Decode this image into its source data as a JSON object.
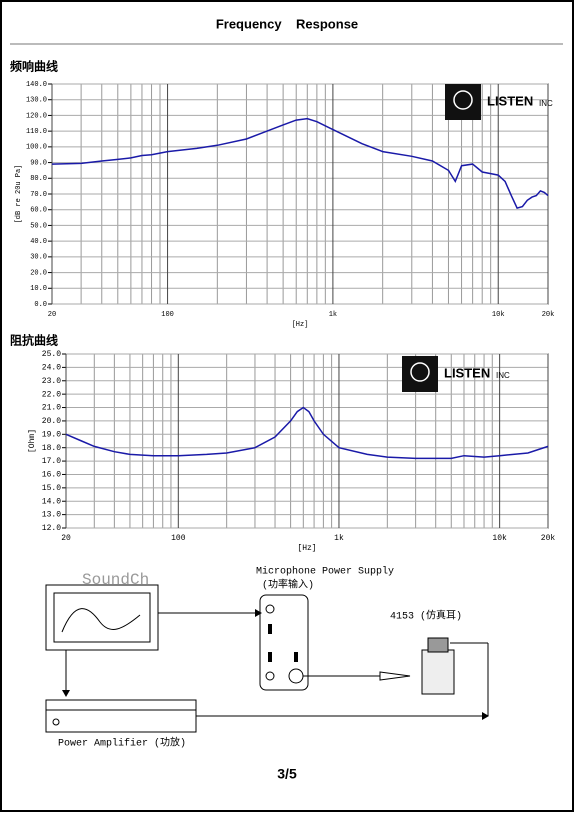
{
  "header": {
    "title": "Frequency    Response"
  },
  "chart_data": [
    {
      "type": "line",
      "title": "频响曲线",
      "x_label": "[Hz]",
      "y_label": "[dB re 20u Pa]",
      "logo_text": "LISTEN",
      "logo_suffix": "INC",
      "log_x": true,
      "grid": true,
      "color": "#1a1aa8",
      "xlim": [
        20,
        20000
      ],
      "xticks": [
        20,
        100,
        {
          "value": 1000,
          "label": "1k"
        },
        {
          "value": 10000,
          "label": "10k"
        },
        {
          "value": 20000,
          "label": "20k"
        }
      ],
      "ylim": [
        0,
        140
      ],
      "yticks": [
        {
          "value": 0,
          "label": "0.0"
        },
        {
          "value": 10,
          "label": "10.0"
        },
        {
          "value": 20,
          "label": "20.0"
        },
        {
          "value": 30,
          "label": "30.0"
        },
        {
          "value": 40,
          "label": "40.0"
        },
        {
          "value": 50,
          "label": "50.0"
        },
        {
          "value": 60,
          "label": "60.0"
        },
        {
          "value": 70,
          "label": "70.0"
        },
        {
          "value": 80,
          "label": "80.0"
        },
        {
          "value": 90,
          "label": "90.0"
        },
        {
          "value": 100,
          "label": "100.0"
        },
        {
          "value": 110,
          "label": "110.0"
        },
        {
          "value": 120,
          "label": "120.0"
        },
        {
          "value": 130,
          "label": "130.0"
        },
        {
          "value": 140,
          "label": "140.0"
        }
      ],
      "x": [
        20,
        30,
        40,
        50,
        60,
        70,
        80,
        100,
        150,
        200,
        300,
        400,
        500,
        600,
        700,
        800,
        1000,
        1500,
        2000,
        3000,
        4000,
        5000,
        5500,
        6000,
        7000,
        8000,
        9000,
        10000,
        11000,
        12000,
        13000,
        14000,
        15000,
        16000,
        17000,
        18000,
        19000,
        20000
      ],
      "values": [
        89,
        89.5,
        91,
        92,
        93,
        94.5,
        95,
        97,
        99,
        101,
        105,
        110,
        114,
        117,
        118,
        116,
        111,
        102,
        97,
        94,
        91,
        85,
        78,
        88,
        89,
        84,
        83,
        82,
        78,
        69,
        61,
        62,
        66,
        68,
        69,
        72,
        71,
        69
      ]
    },
    {
      "type": "line",
      "title": "阻抗曲线",
      "x_label": "[Hz]",
      "y_label": "[Ohm]",
      "logo_text": "LISTEN",
      "logo_suffix": "INC",
      "log_x": true,
      "grid": true,
      "color": "#1a1aa8",
      "xlim": [
        20,
        20000
      ],
      "xticks": [
        20,
        100,
        {
          "value": 1000,
          "label": "1k"
        },
        {
          "value": 10000,
          "label": "10k"
        },
        {
          "value": 20000,
          "label": "20k"
        }
      ],
      "ylim": [
        12,
        25
      ],
      "yticks": [
        {
          "value": 12,
          "label": "12.0"
        },
        {
          "value": 13,
          "label": "13.0"
        },
        {
          "value": 14,
          "label": "14.0"
        },
        {
          "value": 15,
          "label": "15.0"
        },
        {
          "value": 16,
          "label": "16.0"
        },
        {
          "value": 17,
          "label": "17.0"
        },
        {
          "value": 18,
          "label": "18.0"
        },
        {
          "value": 19,
          "label": "19.0"
        },
        {
          "value": 20,
          "label": "20.0"
        },
        {
          "value": 21,
          "label": "21.0"
        },
        {
          "value": 22,
          "label": "22.0"
        },
        {
          "value": 23,
          "label": "23.0"
        },
        {
          "value": 24,
          "label": "24.0"
        },
        {
          "value": 25,
          "label": "25.0"
        }
      ],
      "x": [
        20,
        25,
        30,
        40,
        50,
        70,
        100,
        150,
        200,
        300,
        400,
        500,
        550,
        600,
        650,
        700,
        800,
        1000,
        1500,
        2000,
        3000,
        4000,
        5000,
        6000,
        8000,
        10000,
        15000,
        20000
      ],
      "values": [
        19.0,
        18.5,
        18.1,
        17.7,
        17.5,
        17.4,
        17.4,
        17.5,
        17.6,
        18.0,
        18.8,
        20.0,
        20.7,
        21.0,
        20.7,
        20.0,
        19.0,
        18.0,
        17.5,
        17.3,
        17.2,
        17.2,
        17.2,
        17.4,
        17.3,
        17.4,
        17.6,
        18.1
      ]
    }
  ],
  "diagram": {
    "soundcheck": "SoundCh",
    "mic_supply": "Microphone Power Supply",
    "mic_supply_note": "(功率输入)",
    "ear": "4153 (仿真耳)",
    "amplifier": "Power Amplifier (功放)"
  },
  "footer": {
    "page": "3/5"
  }
}
